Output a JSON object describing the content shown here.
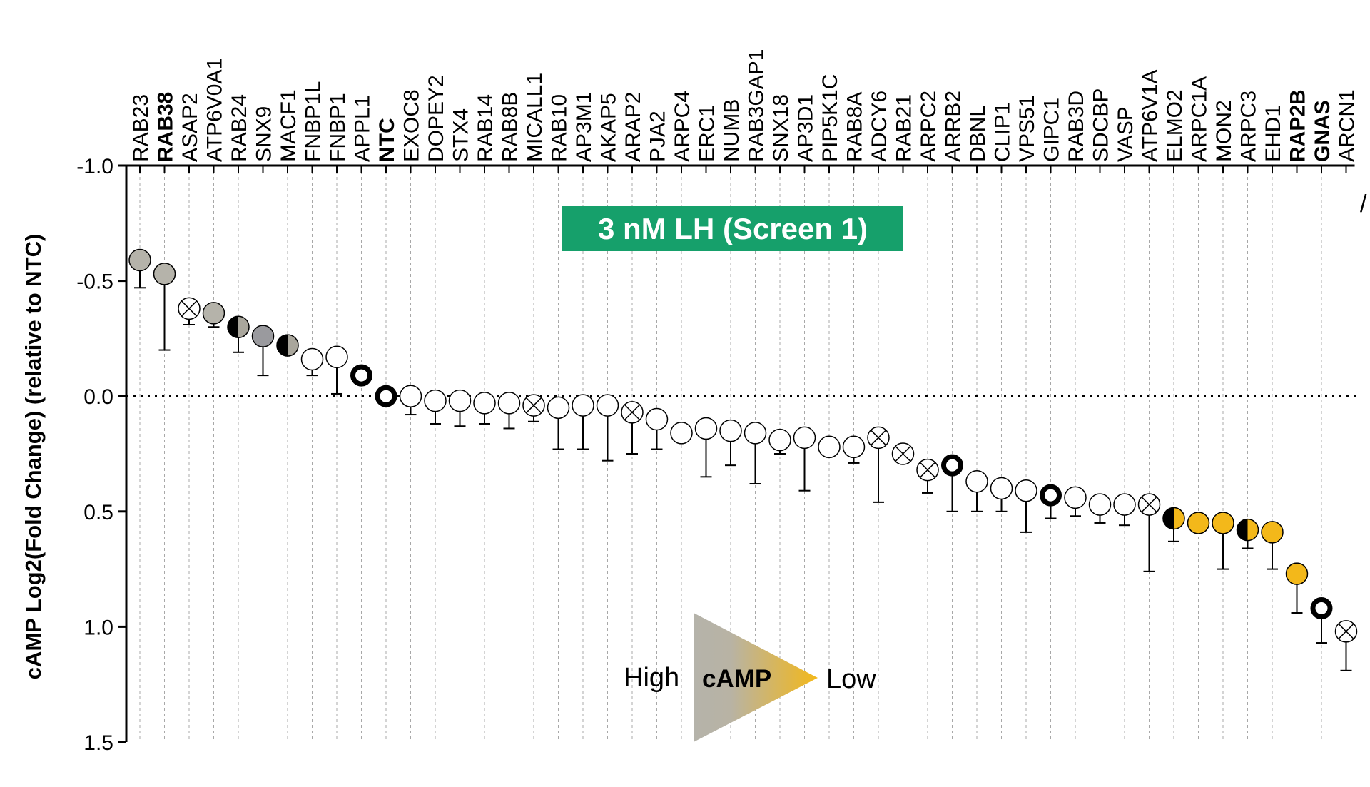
{
  "chart_data": {
    "type": "scatter",
    "title": "3 nM LH (Screen 1)",
    "ylabel": "cAMP Log2(Fold Change) (relative to NTC)",
    "ylim": [
      -1.0,
      1.5
    ],
    "y_inverted": true,
    "y_ticks": [
      "-1.0",
      "-0.5",
      "0.0",
      "0.5",
      "1.0",
      "1.5"
    ],
    "reference_line": 0.0,
    "grid": "vertical dashed lines at each gene",
    "legend": {
      "left": "High",
      "center": "cAMP",
      "right": "Low",
      "gradient_from": "#b5b3aa",
      "gradient_to": "#f3b81a"
    },
    "title_color": "#16a06b",
    "points": [
      {
        "gene": "RAB23",
        "bold": false,
        "y": -0.59,
        "err": 0.12,
        "style": "gray"
      },
      {
        "gene": "RAB38",
        "bold": true,
        "y": -0.53,
        "err": 0.33,
        "style": "gray"
      },
      {
        "gene": "ASAP2",
        "bold": false,
        "y": -0.38,
        "err": 0.07,
        "style": "cross"
      },
      {
        "gene": "ATP6V0A1",
        "bold": false,
        "y": -0.36,
        "err": 0.06,
        "style": "gray"
      },
      {
        "gene": "RAB24",
        "bold": false,
        "y": -0.3,
        "err": 0.11,
        "style": "half"
      },
      {
        "gene": "SNX9",
        "bold": false,
        "y": -0.26,
        "err": 0.17,
        "style": "darkgray"
      },
      {
        "gene": "MACF1",
        "bold": false,
        "y": -0.22,
        "err": 0.03,
        "style": "half"
      },
      {
        "gene": "FNBP1L",
        "bold": false,
        "y": -0.16,
        "err": 0.07,
        "style": "open"
      },
      {
        "gene": "FNBP1",
        "bold": false,
        "y": -0.17,
        "err": 0.16,
        "style": "open"
      },
      {
        "gene": "APPL1",
        "bold": false,
        "y": -0.09,
        "err": 0.0,
        "style": "ring"
      },
      {
        "gene": "NTC",
        "bold": true,
        "y": 0.0,
        "err": 0.0,
        "style": "ring"
      },
      {
        "gene": "EXOC8",
        "bold": false,
        "y": 0.0,
        "err": 0.08,
        "style": "open"
      },
      {
        "gene": "DOPEY2",
        "bold": false,
        "y": 0.02,
        "err": 0.1,
        "style": "open"
      },
      {
        "gene": "STX4",
        "bold": false,
        "y": 0.02,
        "err": 0.11,
        "style": "open"
      },
      {
        "gene": "RAB14",
        "bold": false,
        "y": 0.03,
        "err": 0.09,
        "style": "open"
      },
      {
        "gene": "RAB8B",
        "bold": false,
        "y": 0.03,
        "err": 0.11,
        "style": "open"
      },
      {
        "gene": "MICALL1",
        "bold": false,
        "y": 0.04,
        "err": 0.07,
        "style": "cross"
      },
      {
        "gene": "RAB10",
        "bold": false,
        "y": 0.05,
        "err": 0.18,
        "style": "open"
      },
      {
        "gene": "AP3M1",
        "bold": false,
        "y": 0.04,
        "err": 0.19,
        "style": "open"
      },
      {
        "gene": "AKAP5",
        "bold": false,
        "y": 0.04,
        "err": 0.24,
        "style": "open"
      },
      {
        "gene": "ARAP2",
        "bold": false,
        "y": 0.07,
        "err": 0.18,
        "style": "cross"
      },
      {
        "gene": "PJA2",
        "bold": false,
        "y": 0.1,
        "err": 0.13,
        "style": "open"
      },
      {
        "gene": "ARPC4",
        "bold": false,
        "y": 0.16,
        "err": 0.0,
        "style": "open"
      },
      {
        "gene": "ERC1",
        "bold": false,
        "y": 0.14,
        "err": 0.21,
        "style": "open"
      },
      {
        "gene": "NUMB",
        "bold": false,
        "y": 0.15,
        "err": 0.15,
        "style": "open"
      },
      {
        "gene": "RAB3GAP1",
        "bold": false,
        "y": 0.16,
        "err": 0.22,
        "style": "open"
      },
      {
        "gene": "SNX18",
        "bold": false,
        "y": 0.19,
        "err": 0.06,
        "style": "open"
      },
      {
        "gene": "AP3D1",
        "bold": false,
        "y": 0.18,
        "err": 0.23,
        "style": "open"
      },
      {
        "gene": "PIP5K1C",
        "bold": false,
        "y": 0.22,
        "err": 0.0,
        "style": "open"
      },
      {
        "gene": "RAB8A",
        "bold": false,
        "y": 0.22,
        "err": 0.07,
        "style": "open"
      },
      {
        "gene": "ADCY6",
        "bold": false,
        "y": 0.18,
        "err": 0.28,
        "style": "cross"
      },
      {
        "gene": "RAB21",
        "bold": false,
        "y": 0.25,
        "err": 0.0,
        "style": "cross"
      },
      {
        "gene": "ARPC2",
        "bold": false,
        "y": 0.32,
        "err": 0.1,
        "style": "cross"
      },
      {
        "gene": "ARRB2",
        "bold": false,
        "y": 0.3,
        "err": 0.2,
        "style": "ring"
      },
      {
        "gene": "DBNL",
        "bold": false,
        "y": 0.37,
        "err": 0.13,
        "style": "open"
      },
      {
        "gene": "CLIP1",
        "bold": false,
        "y": 0.4,
        "err": 0.1,
        "style": "open"
      },
      {
        "gene": "VPS51",
        "bold": false,
        "y": 0.41,
        "err": 0.18,
        "style": "open"
      },
      {
        "gene": "GIPC1",
        "bold": false,
        "y": 0.43,
        "err": 0.1,
        "style": "ring"
      },
      {
        "gene": "RAB3D",
        "bold": false,
        "y": 0.44,
        "err": 0.08,
        "style": "open"
      },
      {
        "gene": "SDCBP",
        "bold": false,
        "y": 0.47,
        "err": 0.08,
        "style": "open"
      },
      {
        "gene": "VASP",
        "bold": false,
        "y": 0.47,
        "err": 0.09,
        "style": "open"
      },
      {
        "gene": "ATP6V1A",
        "bold": false,
        "y": 0.47,
        "err": 0.29,
        "style": "cross"
      },
      {
        "gene": "ELMO2",
        "bold": false,
        "y": 0.53,
        "err": 0.1,
        "style": "halfyellow"
      },
      {
        "gene": "ARPC1A",
        "bold": false,
        "y": 0.55,
        "err": 0.0,
        "style": "yellow"
      },
      {
        "gene": "MON2",
        "bold": false,
        "y": 0.55,
        "err": 0.2,
        "style": "yellow"
      },
      {
        "gene": "ARPC3",
        "bold": false,
        "y": 0.58,
        "err": 0.08,
        "style": "halfyellow"
      },
      {
        "gene": "EHD1",
        "bold": false,
        "y": 0.59,
        "err": 0.16,
        "style": "yellow"
      },
      {
        "gene": "RAP2B",
        "bold": true,
        "y": 0.77,
        "err": 0.17,
        "style": "yellow"
      },
      {
        "gene": "GNAS",
        "bold": true,
        "y": 0.92,
        "err": 0.15,
        "style": "ring"
      },
      {
        "gene": "ARCN1",
        "bold": false,
        "y": 1.02,
        "err": 0.17,
        "style": "cross"
      }
    ]
  }
}
